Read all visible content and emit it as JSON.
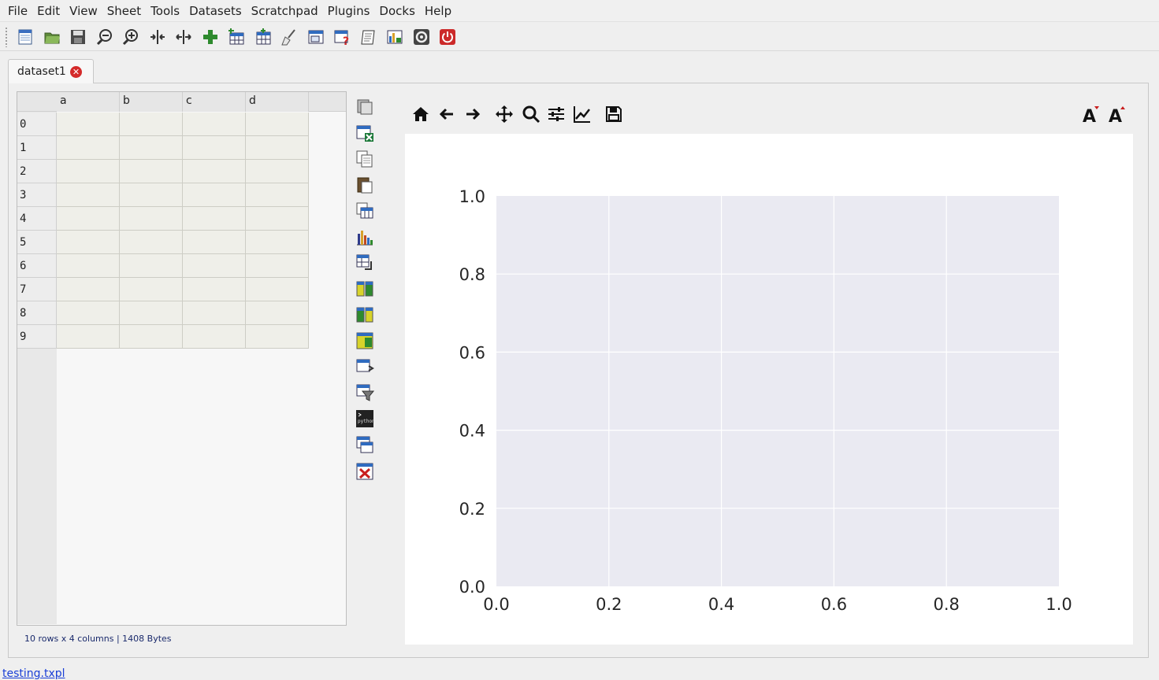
{
  "menu": [
    "File",
    "Edit",
    "View",
    "Sheet",
    "Tools",
    "Datasets",
    "Scratchpad",
    "Plugins",
    "Docks",
    "Help"
  ],
  "toolbar_icons": [
    "new-icon",
    "open-icon",
    "save-icon",
    "zoom-out-icon",
    "zoom-in-icon",
    "contract-columns-icon",
    "expand-columns-icon",
    "add-icon",
    "add-sheet-icon",
    "table-icon",
    "clean-icon",
    "dataset-icon",
    "help-icon",
    "notes-icon",
    "grid-plot-icon",
    "settings-icon",
    "quit-icon"
  ],
  "tab": {
    "label": "dataset1"
  },
  "table": {
    "columns": [
      "a",
      "b",
      "c",
      "d"
    ],
    "rows": [
      "0",
      "1",
      "2",
      "3",
      "4",
      "5",
      "6",
      "7",
      "8",
      "9"
    ]
  },
  "table_status": "10 rows x 4 columns | 1408 Bytes",
  "side_icons": [
    "load-table-icon",
    "export-excel-icon",
    "copy-icon",
    "paste-icon",
    "table-copy-icon",
    "bar-chart-icon",
    "transpose-icon",
    "merge-icon",
    "concat-icon",
    "pivot-icon",
    "apply-function-icon",
    "filter-icon",
    "python-console-icon",
    "sub-table-icon",
    "clear-table-icon"
  ],
  "plot_toolbar": [
    "home-icon",
    "back-icon",
    "forward-icon",
    "pan-icon",
    "zoom-icon",
    "configure-icon",
    "edit-axis-icon",
    "save-figure-icon",
    "font-larger-icon",
    "font-smaller-icon"
  ],
  "chart_data": {
    "type": "line",
    "series": [],
    "xticks": [
      "0.0",
      "0.2",
      "0.4",
      "0.6",
      "0.8",
      "1.0"
    ],
    "yticks": [
      "0.0",
      "0.2",
      "0.4",
      "0.6",
      "0.8",
      "1.0"
    ],
    "xlim": [
      0,
      1
    ],
    "ylim": [
      0,
      1
    ],
    "grid": true,
    "background": "#eaeaf2",
    "title": "",
    "xlabel": "",
    "ylabel": ""
  },
  "statusbar": "testing.txpl"
}
